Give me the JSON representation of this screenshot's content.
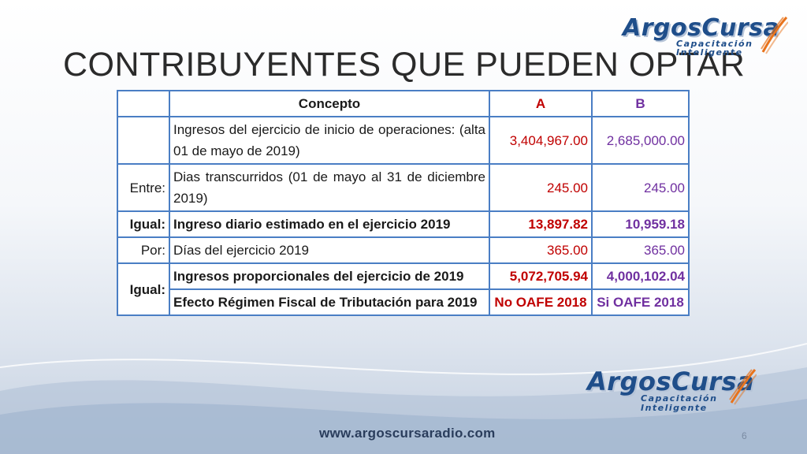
{
  "slide": {
    "title": "CONTRIBUYENTES QUE PUEDEN OPTAR",
    "page_number": "6",
    "footer_url": "www.argoscursaradio.com"
  },
  "logo": {
    "brand": "ArgosCursa",
    "line1": "Capacitación",
    "line2": "Inteligente"
  },
  "table": {
    "headers": {
      "lead": "",
      "concepto": "Concepto",
      "a": "A",
      "b": "B"
    },
    "rows": [
      {
        "lead": "",
        "concept": "Ingresos del ejercicio de inicio de operaciones: (alta 01 de mayo de 2019)",
        "a": "3,404,967.00",
        "b": "2,685,000.00"
      },
      {
        "lead": "Entre:",
        "concept": "Dias transcurridos (01 de mayo al 31 de diciembre 2019)",
        "a": "245.00",
        "b": "245.00"
      },
      {
        "lead": "Igual:",
        "concept": "Ingreso diario estimado en el ejercicio 2019",
        "a": "13,897.82",
        "b": "10,959.18"
      },
      {
        "lead": "Por:",
        "concept": "Días del ejercicio 2019",
        "a": "365.00",
        "b": "365.00"
      },
      {
        "lead": "Igual:",
        "concept": "Ingresos proporcionales del ejercicio de 2019",
        "a": "5,072,705.94",
        "b": "4,000,102.04"
      },
      {
        "concept": "Efecto Régimen Fiscal de Tributación para 2019",
        "a": "No OAFE 2018",
        "b": "Si OAFE 2018"
      }
    ]
  },
  "colors": {
    "col_a": "#c00000",
    "col_b": "#7030a0",
    "table_border": "#4a7ec4",
    "logo_blue": "#1f4e8a",
    "logo_orange": "#e8731c"
  }
}
